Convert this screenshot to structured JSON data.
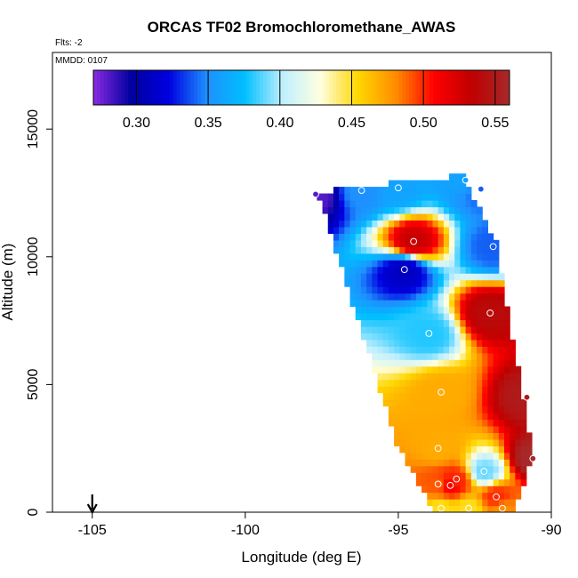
{
  "chart_data": {
    "type": "heatmap",
    "title": "ORCAS TF02 Bromochloromethane_AWAS",
    "flights_note": "Flts: -2",
    "date_note": "MMDD: 0107",
    "xlabel": "Longitude (deg E)",
    "ylabel": "Altitude (m)",
    "xlim": [
      -106.3,
      -90
    ],
    "ylim": [
      0,
      18000
    ],
    "x_ticks": [
      -105,
      -100,
      -95,
      -90
    ],
    "x_tick_labels": [
      "-105",
      "-100",
      "-95",
      "-90"
    ],
    "y_ticks": [
      0,
      5000,
      10000,
      15000
    ],
    "y_tick_labels": [
      "0",
      "5000",
      "10000",
      "15000"
    ],
    "colorbar": {
      "min": 0.27,
      "max": 0.56,
      "ticks": [
        0.3,
        0.35,
        0.4,
        0.45,
        0.5,
        0.55
      ],
      "tick_labels": [
        "0.30",
        "0.35",
        "0.40",
        "0.45",
        "0.50",
        "0.55"
      ],
      "colors": [
        "#8a2be2",
        "#0000a0",
        "#0000e0",
        "#1e90ff",
        "#00bfff",
        "#bfefff",
        "#ffffe0",
        "#ffd700",
        "#ff8c00",
        "#ff0000",
        "#c00000",
        "#a52a2a"
      ]
    },
    "arrow_marker_longitude": -105,
    "sample_points": [
      {
        "lon": -92.8,
        "alt": 13000,
        "value": 0.36
      },
      {
        "lon": -96.2,
        "alt": 12600,
        "value": 0.35
      },
      {
        "lon": -95.0,
        "alt": 12700,
        "value": 0.36
      },
      {
        "lon": -92.3,
        "alt": 12650,
        "value": 0.34
      },
      {
        "lon": -97.7,
        "alt": 12450,
        "value": 0.28
      },
      {
        "lon": -94.5,
        "alt": 10600,
        "value": 0.53
      },
      {
        "lon": -91.9,
        "alt": 10400,
        "value": 0.34
      },
      {
        "lon": -94.8,
        "alt": 9500,
        "value": 0.31
      },
      {
        "lon": -92.0,
        "alt": 7800,
        "value": 0.54
      },
      {
        "lon": -94.0,
        "alt": 7000,
        "value": 0.38
      },
      {
        "lon": -93.6,
        "alt": 4700,
        "value": 0.47
      },
      {
        "lon": -90.8,
        "alt": 4500,
        "value": 0.55
      },
      {
        "lon": -93.7,
        "alt": 2500,
        "value": 0.47
      },
      {
        "lon": -90.6,
        "alt": 2100,
        "value": 0.56
      },
      {
        "lon": -92.2,
        "alt": 1600,
        "value": 0.39
      },
      {
        "lon": -93.1,
        "alt": 1300,
        "value": 0.5
      },
      {
        "lon": -93.7,
        "alt": 1100,
        "value": 0.49
      },
      {
        "lon": -93.3,
        "alt": 1050,
        "value": 0.51
      },
      {
        "lon": -91.8,
        "alt": 600,
        "value": 0.5
      },
      {
        "lon": -93.6,
        "alt": 150,
        "value": 0.45
      },
      {
        "lon": -92.7,
        "alt": 150,
        "value": 0.45
      },
      {
        "lon": -91.6,
        "alt": 150,
        "value": 0.48
      }
    ]
  }
}
